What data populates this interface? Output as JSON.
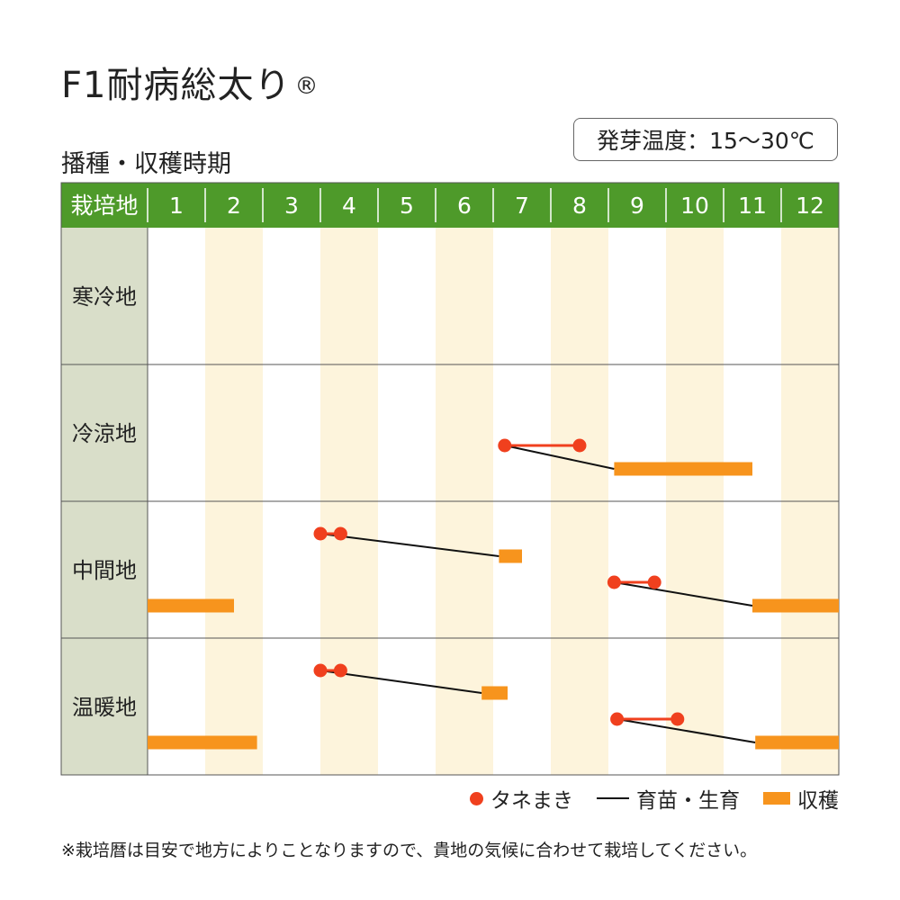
{
  "title": "F1耐病総太り",
  "title_mark": "®",
  "subtitle": "播種・収穫時期",
  "badge": "発芽温度：15～30℃",
  "legend": {
    "sowing": "タネまき",
    "raising": "育苗・生育",
    "harvest": "収穫"
  },
  "note": "※栽培暦は目安で地方によりことなりますので、貴地の気候に合わせて栽培してください。",
  "colors": {
    "header_green": "#4e9a2a",
    "row_label_bg": "#d9dec9",
    "stripe": "#fdf4dc",
    "sowing_dot": "#f0401e",
    "harvest_bar": "#f7941d",
    "growth_line": "#111111"
  },
  "chart_data": {
    "type": "table",
    "header_label": "栽培地",
    "months": [
      "1",
      "2",
      "3",
      "4",
      "5",
      "6",
      "7",
      "8",
      "9",
      "10",
      "11",
      "12"
    ],
    "regions": [
      {
        "name": "寒冷地",
        "plans": []
      },
      {
        "name": "冷涼地",
        "plans": [
          {
            "sow_start": 7.2,
            "sow_end": 8.5,
            "growth_end": 9.1,
            "harvest": [
              9.1,
              11.5
            ]
          }
        ]
      },
      {
        "name": "中間地",
        "plans": [
          {
            "sow_start": 4.0,
            "sow_end": 4.35,
            "growth_end": 7.1,
            "harvest": [
              7.1,
              7.5
            ]
          },
          {
            "sow_start": 9.1,
            "sow_end": 9.8,
            "growth_end": 11.5,
            "harvest": [
              11.5,
              13.0
            ],
            "harvest_cont": [
              1.0,
              2.5
            ]
          }
        ]
      },
      {
        "name": "温暖地",
        "plans": [
          {
            "sow_start": 4.0,
            "sow_end": 4.35,
            "growth_end": 6.8,
            "harvest": [
              6.8,
              7.25
            ]
          },
          {
            "sow_start": 9.15,
            "sow_end": 10.2,
            "growth_end": 11.55,
            "harvest": [
              11.55,
              13.0
            ],
            "harvest_cont": [
              1.0,
              2.9
            ]
          }
        ]
      }
    ]
  }
}
